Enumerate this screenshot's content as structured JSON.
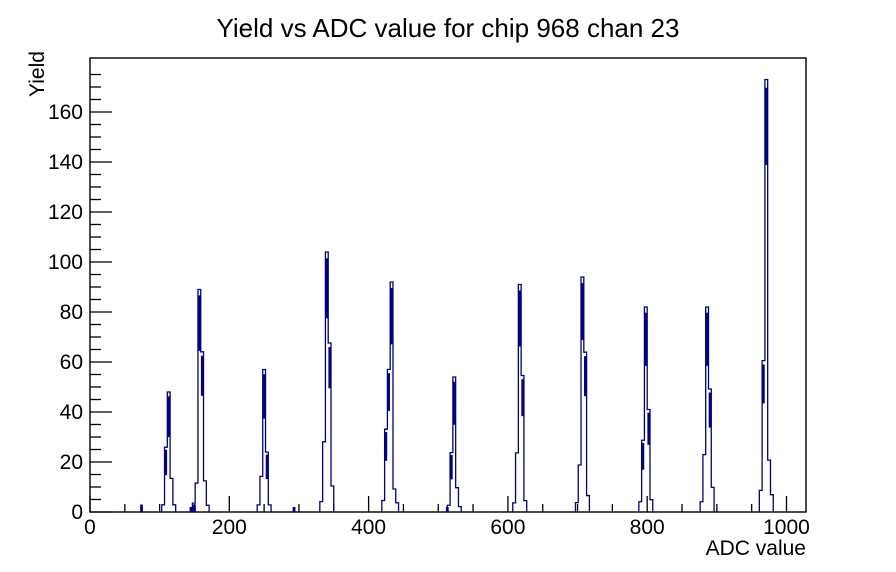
{
  "chart_data": {
    "type": "bar",
    "subtype": "histogram-with-error-bars",
    "title": "Yield vs ADC value for chip 968 chan 23",
    "xlabel": "ADC value",
    "ylabel": "Yield",
    "xlim": [
      0,
      1028
    ],
    "ylim": [
      0,
      181.6
    ],
    "grid": false,
    "legend": null,
    "series_color": "#00008b",
    "axis_color": "#000000",
    "x_axis": {
      "major_ticks": [
        0,
        200,
        400,
        600,
        800,
        1000
      ],
      "major_tick_labels": [
        "0",
        "200",
        "400",
        "600",
        "800",
        "1000"
      ],
      "minor_tick_step": 50
    },
    "y_axis": {
      "major_ticks": [
        0,
        20,
        40,
        60,
        80,
        100,
        120,
        140,
        160
      ],
      "major_tick_labels": [
        "0",
        "20",
        "40",
        "60",
        "80",
        "100",
        "120",
        "140",
        "160"
      ],
      "minor_tick_step": 5
    },
    "bin_width_adc": 4,
    "peaks": [
      {
        "adc": 113,
        "peak_yield": 48,
        "profile": [
          0.06,
          0.54,
          1.0,
          0.28,
          0.06
        ],
        "peak_index": 2
      },
      {
        "adc": 157,
        "peak_yield": 89,
        "profile": [
          0.04,
          0.13,
          1.0,
          0.72,
          0.14,
          0.03
        ],
        "peak_index": 2
      },
      {
        "adc": 250,
        "peak_yield": 57,
        "profile": [
          0.05,
          0.25,
          1.0,
          0.42,
          0.05
        ],
        "peak_index": 2
      },
      {
        "adc": 340,
        "peak_yield": 104,
        "profile": [
          0.04,
          0.27,
          1.0,
          0.65,
          0.1
        ],
        "peak_index": 2
      },
      {
        "adc": 433,
        "peak_yield": 92,
        "profile": [
          0.05,
          0.36,
          0.62,
          1.0,
          0.1,
          0.04
        ],
        "peak_index": 3
      },
      {
        "adc": 523,
        "peak_yield": 54,
        "profile": [
          0.05,
          0.44,
          1.0,
          0.18,
          0.04
        ],
        "peak_index": 2
      },
      {
        "adc": 617,
        "peak_yield": 91,
        "profile": [
          0.04,
          0.26,
          1.0,
          0.6,
          0.05
        ],
        "peak_index": 2
      },
      {
        "adc": 707,
        "peak_yield": 94,
        "profile": [
          0.04,
          0.2,
          1.0,
          0.68,
          0.07
        ],
        "peak_index": 2
      },
      {
        "adc": 798,
        "peak_yield": 82,
        "profile": [
          0.05,
          0.35,
          1.0,
          0.5,
          0.06
        ],
        "peak_index": 2
      },
      {
        "adc": 886,
        "peak_yield": 82,
        "profile": [
          0.05,
          0.28,
          1.0,
          0.6,
          0.12
        ],
        "peak_index": 2
      },
      {
        "adc": 971,
        "peak_yield": 173,
        "profile": [
          0.05,
          0.35,
          1.0,
          0.12,
          0.04
        ],
        "peak_index": 2
      }
    ],
    "small_bumps": [
      {
        "adc": 74,
        "yield": 3
      },
      {
        "adc": 145,
        "yield": 2
      },
      {
        "adc": 150,
        "yield": 3
      },
      {
        "adc": 293,
        "yield": 2
      },
      {
        "adc": 513,
        "yield": 2
      }
    ]
  }
}
